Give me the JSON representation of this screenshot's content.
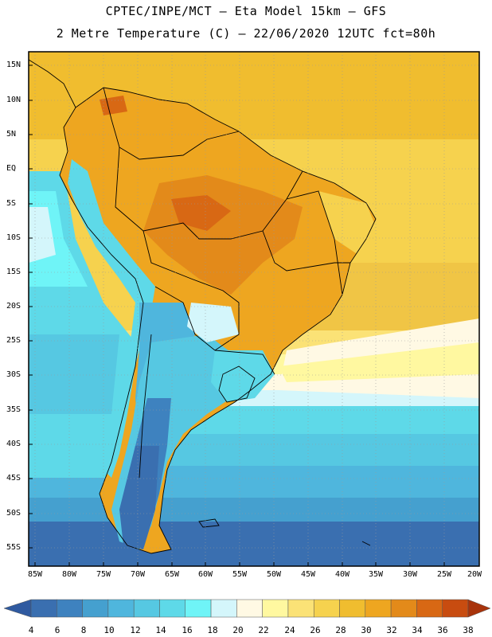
{
  "title_line1": "CPTEC/INPE/MCT –  Eta Model 15km – GFS",
  "title_line2": "2 Metre Temperature (C) – 22/06/2020 12UTC fct=80h",
  "lat_labels": [
    "15N",
    "10N",
    "5N",
    "EQ",
    "5S",
    "10S",
    "15S",
    "20S",
    "25S",
    "30S",
    "35S",
    "40S",
    "45S",
    "50S",
    "55S"
  ],
  "lon_labels": [
    "85W",
    "80W",
    "75W",
    "70W",
    "65W",
    "60W",
    "55W",
    "50W",
    "45W",
    "40W",
    "35W",
    "30W",
    "25W",
    "20W"
  ],
  "colorbar": {
    "values": [
      "4",
      "6",
      "8",
      "10",
      "12",
      "14",
      "16",
      "18",
      "20",
      "22",
      "24",
      "26",
      "28",
      "30",
      "32",
      "34",
      "36",
      "38"
    ],
    "colors": [
      "#3a6fb0",
      "#3e82bf",
      "#45a0cf",
      "#4fb6dd",
      "#56c8e2",
      "#5ed9e8",
      "#6ff4f7",
      "#d4f6fb",
      "#fff9e4",
      "#fff8a0",
      "#fbe276",
      "#f6d24e",
      "#f0bd2f",
      "#eea620",
      "#e38a1a",
      "#d86814",
      "#c84c10",
      "#b63a0d"
    ],
    "left_arrow_color": "#2f5aa0",
    "right_arrow_color": "#a8330b"
  }
}
